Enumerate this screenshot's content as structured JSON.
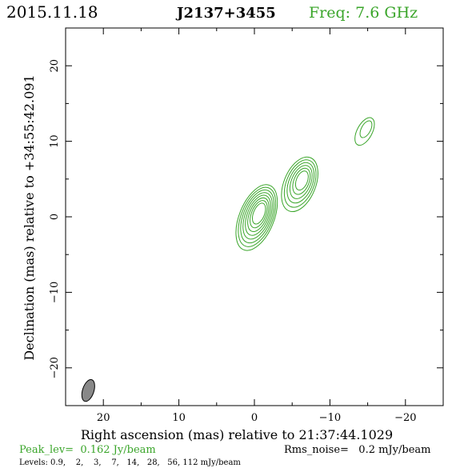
{
  "header": {
    "date": "2015.11.18",
    "source": "J2137+3455",
    "freq": "Freq: 7.6 GHz"
  },
  "footer": {
    "peak": "Peak_lev=  0.162 Jy/beam",
    "rms": "Rms_noise=   0.2 mJy/beam",
    "levels": "Levels: 0.9,    2,    3,    7,   14,   28,   56, 112 mJy/beam"
  },
  "colors": {
    "contour": "#3aa52a",
    "green_text": "#3aa52a",
    "beam_fill": "#888888",
    "frame": "#000000"
  },
  "chart_data": {
    "type": "contour",
    "xlabel": "Right ascension (mas) relative to 21:37:44.1029",
    "ylabel": "Declination (mas) relative to +34:55:42.091",
    "xlim": [
      25,
      -25
    ],
    "ylim": [
      -25,
      25
    ],
    "x_ticks": [
      20,
      10,
      0,
      -10,
      -20
    ],
    "y_ticks": [
      -20,
      -10,
      0,
      10,
      20
    ],
    "x_tick_labels": [
      "20",
      "10",
      "0",
      "−10",
      "−20"
    ],
    "y_tick_labels": [
      "−20",
      "−10",
      "0",
      "10",
      "20"
    ],
    "grid": false,
    "levels_mJy": [
      0.9,
      2,
      3,
      7,
      14,
      28,
      56,
      112
    ],
    "peak_Jy_per_beam": 0.162,
    "rms_mJy_per_beam": 0.2,
    "components": [
      {
        "x": -0.3,
        "y": -0.1,
        "pa_deg": -22,
        "outer": [
          2.3,
          4.6
        ],
        "n_contours": 8
      },
      {
        "x": -6.0,
        "y": 4.3,
        "pa_deg": -22,
        "outer": [
          2.1,
          3.8
        ],
        "n_contours": 6
      },
      {
        "x": -14.6,
        "y": 11.3,
        "pa_deg": -28,
        "outer": [
          1.0,
          2.0
        ],
        "n_contours": 2
      }
    ],
    "beam": {
      "x": 22.0,
      "y": -23.0,
      "major": 1.5,
      "minor": 0.75,
      "pa_deg": -18
    }
  }
}
